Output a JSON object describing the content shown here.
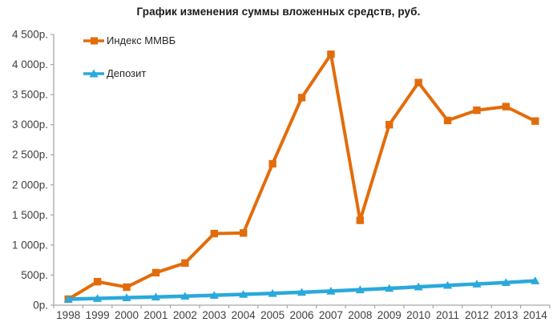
{
  "title": "График изменения суммы вложенных средств, руб.",
  "currency_suffix": "р.",
  "colors": {
    "mmvb_orange": "#E36C0A",
    "deposit_blue": "#29A9DC",
    "axis_gray": "#A6A6A6",
    "tick_text": "#3f3f3f",
    "background": "#ffffff"
  },
  "chart_data": {
    "type": "line",
    "title": "График изменения суммы вложенных средств, руб.",
    "xlabel": "",
    "ylabel": "",
    "grid": false,
    "legend_position": "top-left-inside",
    "categories": [
      "1998",
      "1999",
      "2000",
      "2001",
      "2002",
      "2003",
      "2004",
      "2005",
      "2006",
      "2007",
      "2008",
      "2009",
      "2010",
      "2011",
      "2012",
      "2013",
      "2014"
    ],
    "ylim": [
      0,
      4500
    ],
    "ytick_step": 500,
    "ytick_labels": [
      "0р.",
      "500р.",
      "1 000р.",
      "1 500р.",
      "2 000р.",
      "2 500р.",
      "3 000р.",
      "3 500р.",
      "4 000р.",
      "4 500р."
    ],
    "series": [
      {
        "name": "Индекс ММВБ",
        "color": "#E36C0A",
        "marker": "square",
        "line_width": 4,
        "values": [
          100,
          390,
          300,
          540,
          700,
          1190,
          1200,
          2350,
          3450,
          4170,
          1410,
          3000,
          3700,
          3070,
          3240,
          3300,
          3060
        ]
      },
      {
        "name": "Депозит",
        "color": "#29A9DC",
        "marker": "triangle",
        "line_width": 4.5,
        "values": [
          100,
          112,
          124,
          136,
          150,
          164,
          180,
          196,
          214,
          234,
          256,
          280,
          304,
          330,
          352,
          376,
          405
        ]
      }
    ]
  }
}
